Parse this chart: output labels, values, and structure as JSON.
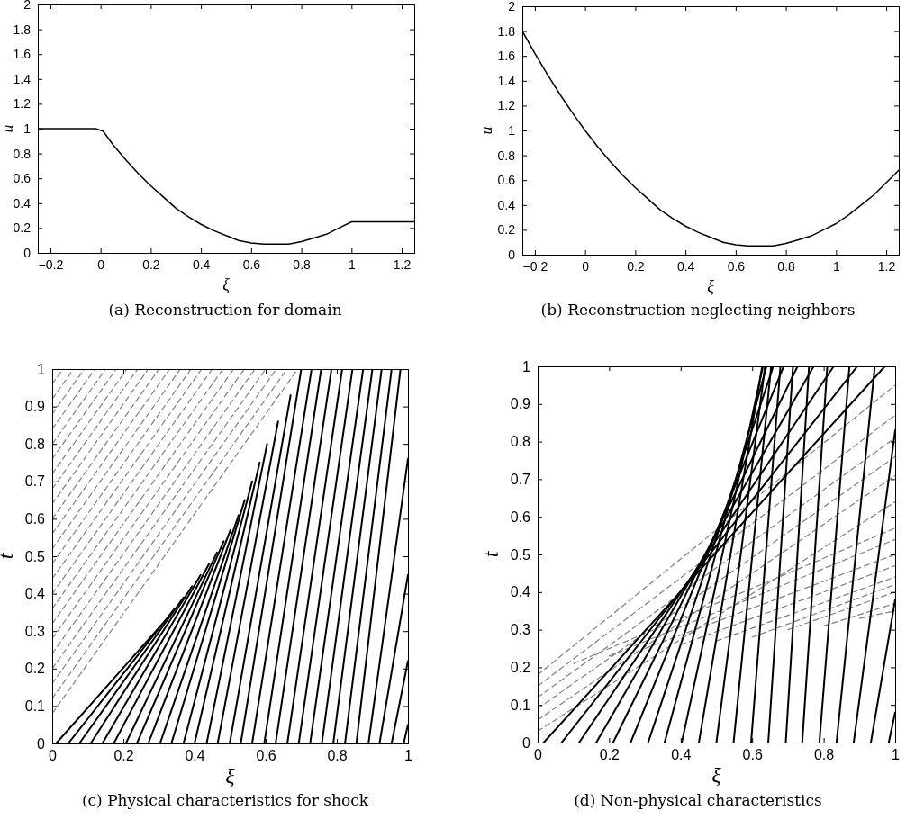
{
  "chart_data": [
    {
      "type": "line",
      "title": "(a) Reconstruction for domain",
      "xlabel": "ξ",
      "ylabel": "u",
      "xlim": [
        -0.25,
        1.25
      ],
      "ylim": [
        0,
        2
      ],
      "xticks": [
        -0.2,
        0,
        0.2,
        0.4,
        0.6,
        0.8,
        1,
        1.2
      ],
      "yticks": [
        0,
        0.2,
        0.4,
        0.6,
        0.8,
        1,
        1.2,
        1.4,
        1.6,
        1.8,
        2
      ],
      "series": [
        {
          "color": "#000000",
          "line_style": "solid",
          "x": [
            -0.25,
            -0.02,
            0.01,
            0.05,
            0.1,
            0.15,
            0.2,
            0.25,
            0.3,
            0.35,
            0.4,
            0.45,
            0.5,
            0.55,
            0.6,
            0.65,
            0.7,
            0.75,
            0.8,
            0.85,
            0.9,
            0.95,
            1.0,
            1.25
          ],
          "values": [
            1,
            1,
            0.98,
            0.87,
            0.75,
            0.64,
            0.54,
            0.45,
            0.36,
            0.29,
            0.23,
            0.18,
            0.14,
            0.1,
            0.08,
            0.07,
            0.07,
            0.07,
            0.09,
            0.12,
            0.15,
            0.2,
            0.25,
            0.25
          ]
        }
      ]
    },
    {
      "type": "line",
      "title": "(b) Reconstruction neglecting neighbors",
      "xlabel": "ξ",
      "ylabel": "u",
      "xlim": [
        -0.25,
        1.25
      ],
      "ylim": [
        0,
        2
      ],
      "xticks": [
        -0.2,
        0,
        0.2,
        0.4,
        0.6,
        0.8,
        1,
        1.2
      ],
      "yticks": [
        0,
        0.2,
        0.4,
        0.6,
        0.8,
        1,
        1.2,
        1.4,
        1.6,
        1.8,
        2
      ],
      "series": [
        {
          "color": "#000000",
          "line_style": "solid",
          "x": [
            -0.25,
            -0.2,
            -0.15,
            -0.1,
            -0.05,
            0,
            0.05,
            0.1,
            0.15,
            0.2,
            0.25,
            0.3,
            0.35,
            0.4,
            0.45,
            0.5,
            0.55,
            0.6,
            0.65,
            0.7,
            0.75,
            0.8,
            0.85,
            0.9,
            0.95,
            1.0,
            1.05,
            1.1,
            1.15,
            1.2,
            1.25
          ],
          "values": [
            1.8,
            1.62,
            1.45,
            1.29,
            1.14,
            1.0,
            0.87,
            0.75,
            0.64,
            0.54,
            0.45,
            0.36,
            0.29,
            0.23,
            0.18,
            0.14,
            0.1,
            0.08,
            0.07,
            0.07,
            0.07,
            0.09,
            0.12,
            0.15,
            0.2,
            0.25,
            0.32,
            0.4,
            0.48,
            0.58,
            0.68
          ]
        }
      ]
    },
    {
      "type": "line",
      "title": "(c) Physical characteristics for shock",
      "xlabel": "ξ",
      "ylabel": "t",
      "xlim": [
        0,
        1
      ],
      "ylim": [
        0,
        1
      ],
      "xticks": [
        0,
        0.2,
        0.4,
        0.6,
        0.8,
        1
      ],
      "yticks": [
        0,
        0.1,
        0.2,
        0.3,
        0.4,
        0.5,
        0.6,
        0.7,
        0.8,
        0.9,
        1
      ],
      "series": [
        {
          "color": "#808080",
          "line_style": "dashed",
          "x": [
            0,
            0.69
          ],
          "values": [
            0.08,
            1
          ]
        },
        {
          "color": "#808080",
          "line_style": "dashed",
          "x": [
            0,
            0.66
          ],
          "values": [
            0.12,
            1
          ]
        },
        {
          "color": "#808080",
          "line_style": "dashed",
          "x": [
            0,
            0.63
          ],
          "values": [
            0.16,
            1
          ]
        },
        {
          "color": "#808080",
          "line_style": "dashed",
          "x": [
            0,
            0.6
          ],
          "values": [
            0.2,
            1
          ]
        },
        {
          "color": "#808080",
          "line_style": "dashed",
          "x": [
            0,
            0.57
          ],
          "values": [
            0.24,
            1
          ]
        },
        {
          "color": "#808080",
          "line_style": "dashed",
          "x": [
            0,
            0.54
          ],
          "values": [
            0.28,
            1
          ]
        },
        {
          "color": "#808080",
          "line_style": "dashed",
          "x": [
            0,
            0.51
          ],
          "values": [
            0.32,
            1
          ]
        },
        {
          "color": "#808080",
          "line_style": "dashed",
          "x": [
            0,
            0.48
          ],
          "values": [
            0.36,
            1
          ]
        },
        {
          "color": "#808080",
          "line_style": "dashed",
          "x": [
            0,
            0.45
          ],
          "values": [
            0.4,
            1
          ]
        },
        {
          "color": "#808080",
          "line_style": "dashed",
          "x": [
            0,
            0.42
          ],
          "values": [
            0.44,
            1
          ]
        },
        {
          "color": "#808080",
          "line_style": "dashed",
          "x": [
            0,
            0.39
          ],
          "values": [
            0.48,
            1
          ]
        },
        {
          "color": "#808080",
          "line_style": "dashed",
          "x": [
            0,
            0.36
          ],
          "values": [
            0.52,
            1
          ]
        },
        {
          "color": "#808080",
          "line_style": "dashed",
          "x": [
            0,
            0.33
          ],
          "values": [
            0.56,
            1
          ]
        },
        {
          "color": "#808080",
          "line_style": "dashed",
          "x": [
            0,
            0.3
          ],
          "values": [
            0.6,
            1
          ]
        },
        {
          "color": "#808080",
          "line_style": "dashed",
          "x": [
            0,
            0.27
          ],
          "values": [
            0.64,
            1
          ]
        },
        {
          "color": "#808080",
          "line_style": "dashed",
          "x": [
            0,
            0.24
          ],
          "values": [
            0.68,
            1
          ]
        },
        {
          "color": "#808080",
          "line_style": "dashed",
          "x": [
            0,
            0.21
          ],
          "values": [
            0.72,
            1
          ]
        },
        {
          "color": "#808080",
          "line_style": "dashed",
          "x": [
            0,
            0.18
          ],
          "values": [
            0.76,
            1
          ]
        },
        {
          "color": "#808080",
          "line_style": "dashed",
          "x": [
            0,
            0.15
          ],
          "values": [
            0.8,
            1
          ]
        },
        {
          "color": "#808080",
          "line_style": "dashed",
          "x": [
            0,
            0.12
          ],
          "values": [
            0.84,
            1
          ]
        },
        {
          "color": "#808080",
          "line_style": "dashed",
          "x": [
            0,
            0.09
          ],
          "values": [
            0.88,
            1
          ]
        },
        {
          "color": "#808080",
          "line_style": "dashed",
          "x": [
            0,
            0.06
          ],
          "values": [
            0.92,
            1
          ]
        },
        {
          "color": "#808080",
          "line_style": "dashed",
          "x": [
            0,
            0.03
          ],
          "values": [
            0.96,
            1
          ]
        },
        {
          "color": "#000000",
          "line_style": "solid",
          "x": [
            0.011,
            0.31
          ],
          "values": [
            0,
            0.32
          ]
        },
        {
          "color": "#000000",
          "line_style": "solid",
          "x": [
            0.045,
            0.344
          ],
          "values": [
            0,
            0.36
          ]
        },
        {
          "color": "#000000",
          "line_style": "solid",
          "x": [
            0.076,
            0.369
          ],
          "values": [
            0,
            0.39
          ]
        },
        {
          "color": "#000000",
          "line_style": "solid",
          "x": [
            0.108,
            0.393
          ],
          "values": [
            0,
            0.42
          ]
        },
        {
          "color": "#000000",
          "line_style": "solid",
          "x": [
            0.141,
            0.417
          ],
          "values": [
            0,
            0.45
          ]
        },
        {
          "color": "#000000",
          "line_style": "solid",
          "x": [
            0.173,
            0.441
          ],
          "values": [
            0,
            0.48
          ]
        },
        {
          "color": "#000000",
          "line_style": "solid",
          "x": [
            0.207,
            0.463
          ],
          "values": [
            0,
            0.51
          ]
        },
        {
          "color": "#000000",
          "line_style": "solid",
          "x": [
            0.238,
            0.482
          ],
          "values": [
            0,
            0.54
          ]
        },
        {
          "color": "#000000",
          "line_style": "solid",
          "x": [
            0.27,
            0.501
          ],
          "values": [
            0,
            0.57
          ]
        },
        {
          "color": "#000000",
          "line_style": "solid",
          "x": [
            0.303,
            0.524
          ],
          "values": [
            0,
            0.61
          ]
        },
        {
          "color": "#000000",
          "line_style": "solid",
          "x": [
            0.335,
            0.541
          ],
          "values": [
            0,
            0.65
          ]
        },
        {
          "color": "#000000",
          "line_style": "solid",
          "x": [
            0.369,
            0.562
          ],
          "values": [
            0,
            0.7
          ]
        },
        {
          "color": "#000000",
          "line_style": "solid",
          "x": [
            0.4,
            0.583
          ],
          "values": [
            0,
            0.75
          ]
        },
        {
          "color": "#000000",
          "line_style": "solid",
          "x": [
            0.434,
            0.604
          ],
          "values": [
            0,
            0.8
          ]
        },
        {
          "color": "#000000",
          "line_style": "solid",
          "x": [
            0.465,
            0.635
          ],
          "values": [
            0,
            0.86
          ]
        },
        {
          "color": "#000000",
          "line_style": "solid",
          "x": [
            0.499,
            0.67
          ],
          "values": [
            0,
            0.93
          ]
        },
        {
          "color": "#000000",
          "line_style": "solid",
          "x": [
            0.53,
            0.7
          ],
          "values": [
            0,
            1
          ]
        },
        {
          "color": "#000000",
          "line_style": "solid",
          "x": [
            0.562,
            0.729
          ],
          "values": [
            0,
            1
          ]
        },
        {
          "color": "#000000",
          "line_style": "solid",
          "x": [
            0.596,
            0.756
          ],
          "values": [
            0,
            1
          ]
        },
        {
          "color": "#000000",
          "line_style": "solid",
          "x": [
            0.628,
            0.785
          ],
          "values": [
            0,
            1
          ]
        },
        {
          "color": "#000000",
          "line_style": "solid",
          "x": [
            0.661,
            0.815
          ],
          "values": [
            0,
            1
          ]
        },
        {
          "color": "#000000",
          "line_style": "solid",
          "x": [
            0.693,
            0.844
          ],
          "values": [
            0,
            1
          ]
        },
        {
          "color": "#000000",
          "line_style": "solid",
          "x": [
            0.725,
            0.874
          ],
          "values": [
            0,
            1
          ]
        },
        {
          "color": "#000000",
          "line_style": "solid",
          "x": [
            0.758,
            0.9
          ],
          "values": [
            0,
            1
          ]
        },
        {
          "color": "#000000",
          "line_style": "solid",
          "x": [
            0.79,
            0.926
          ],
          "values": [
            0,
            1
          ]
        },
        {
          "color": "#000000",
          "line_style": "solid",
          "x": [
            0.823,
            0.954
          ],
          "values": [
            0,
            1
          ]
        },
        {
          "color": "#000000",
          "line_style": "solid",
          "x": [
            0.855,
            0.979
          ],
          "values": [
            0,
            1
          ]
        },
        {
          "color": "#000000",
          "line_style": "solid",
          "x": [
            0.889,
            1
          ],
          "values": [
            0,
            0.76
          ]
        },
        {
          "color": "#000000",
          "line_style": "solid",
          "x": [
            0.92,
            1
          ],
          "values": [
            0,
            0.45
          ]
        },
        {
          "color": "#000000",
          "line_style": "solid",
          "x": [
            0.954,
            1
          ],
          "values": [
            0,
            0.22
          ]
        },
        {
          "color": "#000000",
          "line_style": "solid",
          "x": [
            0.988,
            1
          ],
          "values": [
            0,
            0.05
          ]
        }
      ]
    },
    {
      "type": "line",
      "title": "(d) Non-physical characteristics",
      "xlabel": "ξ",
      "ylabel": "t",
      "xlim": [
        0,
        1
      ],
      "ylim": [
        0,
        1
      ],
      "xticks": [
        0,
        0.2,
        0.4,
        0.6,
        0.8,
        1
      ],
      "yticks": [
        0,
        0.1,
        0.2,
        0.3,
        0.4,
        0.5,
        0.6,
        0.7,
        0.8,
        0.9,
        1
      ],
      "series": [
        {
          "color": "#808080",
          "line_style": "dashed",
          "x": [
            0,
            1
          ],
          "values": [
            0.18,
            0.95
          ]
        },
        {
          "color": "#808080",
          "line_style": "dashed",
          "x": [
            0,
            1
          ],
          "values": [
            0.15,
            0.87
          ]
        },
        {
          "color": "#808080",
          "line_style": "dashed",
          "x": [
            0,
            1
          ],
          "values": [
            0.12,
            0.81
          ]
        },
        {
          "color": "#808080",
          "line_style": "dashed",
          "x": [
            0,
            1
          ],
          "values": [
            0.09,
            0.76
          ]
        },
        {
          "color": "#808080",
          "line_style": "dashed",
          "x": [
            0,
            1
          ],
          "values": [
            0.06,
            0.71
          ]
        },
        {
          "color": "#808080",
          "line_style": "dashed",
          "x": [
            0,
            1
          ],
          "values": [
            0.03,
            0.64
          ]
        },
        {
          "color": "#808080",
          "line_style": "dashed",
          "x": [
            0.1,
            1
          ],
          "values": [
            0.21,
            0.57
          ]
        },
        {
          "color": "#808080",
          "line_style": "dashed",
          "x": [
            0.2,
            1
          ],
          "values": [
            0.23,
            0.54
          ]
        },
        {
          "color": "#808080",
          "line_style": "dashed",
          "x": [
            0.3,
            1
          ],
          "values": [
            0.25,
            0.5
          ]
        },
        {
          "color": "#808080",
          "line_style": "dashed",
          "x": [
            0.4,
            1
          ],
          "values": [
            0.26,
            0.47
          ]
        },
        {
          "color": "#808080",
          "line_style": "dashed",
          "x": [
            0.5,
            1
          ],
          "values": [
            0.27,
            0.44
          ]
        },
        {
          "color": "#808080",
          "line_style": "dashed",
          "x": [
            0.6,
            1
          ],
          "values": [
            0.28,
            0.42
          ]
        },
        {
          "color": "#808080",
          "line_style": "dashed",
          "x": [
            0.7,
            1
          ],
          "values": [
            0.3,
            0.4
          ]
        },
        {
          "color": "#808080",
          "line_style": "dashed",
          "x": [
            0.8,
            1
          ],
          "values": [
            0.31,
            0.37
          ]
        },
        {
          "color": "#808080",
          "line_style": "dashed",
          "x": [
            0.9,
            1
          ],
          "values": [
            0.33,
            0.35
          ]
        },
        {
          "color": "#000000",
          "line_style": "solid",
          "x": [
            0.017,
            0.971
          ],
          "values": [
            0,
            1
          ]
        },
        {
          "color": "#000000",
          "line_style": "solid",
          "x": [
            0.067,
            0.894
          ],
          "values": [
            0,
            1
          ]
        },
        {
          "color": "#000000",
          "line_style": "solid",
          "x": [
            0.116,
            0.828
          ],
          "values": [
            0,
            1
          ]
        },
        {
          "color": "#000000",
          "line_style": "solid",
          "x": [
            0.164,
            0.772
          ],
          "values": [
            0,
            1
          ]
        },
        {
          "color": "#000000",
          "line_style": "solid",
          "x": [
            0.211,
            0.727
          ],
          "values": [
            0,
            1
          ]
        },
        {
          "color": "#000000",
          "line_style": "solid",
          "x": [
            0.26,
            0.688
          ],
          "values": [
            0,
            1
          ]
        },
        {
          "color": "#000000",
          "line_style": "solid",
          "x": [
            0.309,
            0.659
          ],
          "values": [
            0,
            1
          ]
        },
        {
          "color": "#000000",
          "line_style": "solid",
          "x": [
            0.355,
            0.64
          ],
          "values": [
            0,
            1
          ]
        },
        {
          "color": "#000000",
          "line_style": "solid",
          "x": [
            0.403,
            0.63
          ],
          "values": [
            0,
            1
          ]
        },
        {
          "color": "#000000",
          "line_style": "solid",
          "x": [
            0.451,
            0.628
          ],
          "values": [
            0,
            1
          ]
        },
        {
          "color": "#000000",
          "line_style": "solid",
          "x": [
            0.5,
            0.636
          ],
          "values": [
            0,
            1
          ]
        },
        {
          "color": "#000000",
          "line_style": "solid",
          "x": [
            0.548,
            0.653
          ],
          "values": [
            0,
            1
          ]
        },
        {
          "color": "#000000",
          "line_style": "solid",
          "x": [
            0.597,
            0.679
          ],
          "values": [
            0,
            1
          ]
        },
        {
          "color": "#000000",
          "line_style": "solid",
          "x": [
            0.645,
            0.714
          ],
          "values": [
            0,
            1
          ]
        },
        {
          "color": "#000000",
          "line_style": "solid",
          "x": [
            0.694,
            0.759
          ],
          "values": [
            0,
            1
          ]
        },
        {
          "color": "#000000",
          "line_style": "solid",
          "x": [
            0.74,
            0.81
          ],
          "values": [
            0,
            1
          ]
        },
        {
          "color": "#000000",
          "line_style": "solid",
          "x": [
            0.788,
            0.872
          ],
          "values": [
            0,
            1
          ]
        },
        {
          "color": "#000000",
          "line_style": "solid",
          "x": [
            0.836,
            0.943
          ],
          "values": [
            0,
            1
          ]
        },
        {
          "color": "#000000",
          "line_style": "solid",
          "x": [
            0.884,
            1
          ],
          "values": [
            0,
            0.83
          ]
        },
        {
          "color": "#000000",
          "line_style": "solid",
          "x": [
            0.932,
            1
          ],
          "values": [
            0,
            0.38
          ]
        },
        {
          "color": "#000000",
          "line_style": "solid",
          "x": [
            0.982,
            1
          ],
          "values": [
            0,
            0.08
          ]
        }
      ]
    }
  ]
}
